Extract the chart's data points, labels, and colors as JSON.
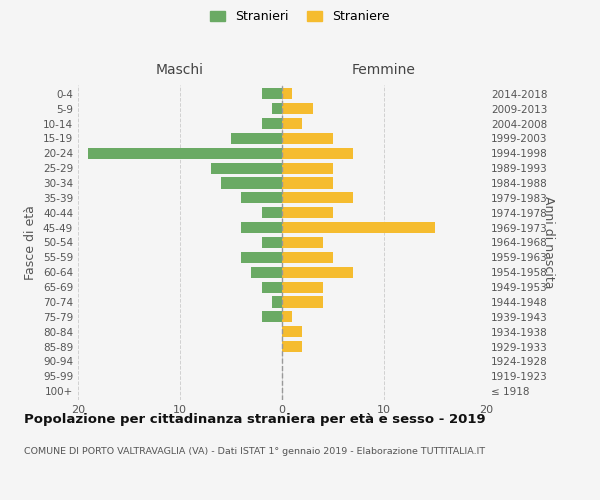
{
  "age_groups": [
    "100+",
    "95-99",
    "90-94",
    "85-89",
    "80-84",
    "75-79",
    "70-74",
    "65-69",
    "60-64",
    "55-59",
    "50-54",
    "45-49",
    "40-44",
    "35-39",
    "30-34",
    "25-29",
    "20-24",
    "15-19",
    "10-14",
    "5-9",
    "0-4"
  ],
  "birth_years": [
    "≤ 1918",
    "1919-1923",
    "1924-1928",
    "1929-1933",
    "1934-1938",
    "1939-1943",
    "1944-1948",
    "1949-1953",
    "1954-1958",
    "1959-1963",
    "1964-1968",
    "1969-1973",
    "1974-1978",
    "1979-1983",
    "1984-1988",
    "1989-1993",
    "1994-1998",
    "1999-2003",
    "2004-2008",
    "2009-2013",
    "2014-2018"
  ],
  "maschi": [
    0,
    0,
    0,
    0,
    0,
    2,
    1,
    2,
    3,
    4,
    2,
    4,
    2,
    4,
    6,
    7,
    19,
    5,
    2,
    1,
    2
  ],
  "femmine": [
    0,
    0,
    0,
    2,
    2,
    1,
    4,
    4,
    7,
    5,
    4,
    15,
    5,
    7,
    5,
    5,
    7,
    5,
    2,
    3,
    1
  ],
  "color_maschi": "#6aaa64",
  "color_femmine": "#f5bc2f",
  "xlim": 20,
  "title": "Popolazione per cittadinanza straniera per età e sesso - 2019",
  "subtitle": "COMUNE DI PORTO VALTRAVAGLIA (VA) - Dati ISTAT 1° gennaio 2019 - Elaborazione TUTTITALIA.IT",
  "ylabel_left": "Fasce di età",
  "ylabel_right": "Anni di nascita",
  "label_maschi": "Stranieri",
  "label_femmine": "Straniere",
  "header_maschi": "Maschi",
  "header_femmine": "Femmine",
  "bg_color": "#f5f5f5",
  "grid_color": "#cccccc",
  "bar_height": 0.75
}
